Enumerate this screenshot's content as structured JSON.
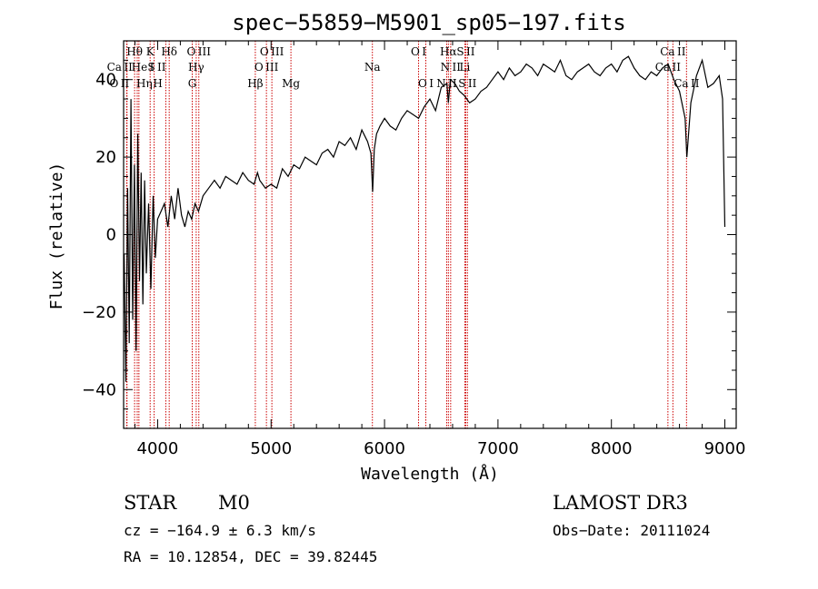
{
  "chart_data": {
    "type": "line",
    "title": "spec−55859−M5901_sp05−197.fits",
    "xlabel": "Wavelength (Å)",
    "ylabel": "Flux (relative)",
    "xlim": [
      3700,
      9100
    ],
    "ylim": [
      -50,
      50
    ],
    "x_ticks": [
      {
        "value": 4000,
        "label": "4000"
      },
      {
        "value": 5000,
        "label": "5000"
      },
      {
        "value": 6000,
        "label": "6000"
      },
      {
        "value": 7000,
        "label": "7000"
      },
      {
        "value": 8000,
        "label": "8000"
      },
      {
        "value": 9000,
        "label": "9000"
      }
    ],
    "y_ticks": [
      {
        "value": -40,
        "label": "−40"
      },
      {
        "value": -20,
        "label": "−20"
      },
      {
        "value": 0,
        "label": "0"
      },
      {
        "value": 20,
        "label": "20"
      },
      {
        "value": 40,
        "label": "40"
      }
    ],
    "series": [
      {
        "color": "#000000",
        "x": [
          3705,
          3720,
          3735,
          3750,
          3765,
          3780,
          3795,
          3810,
          3825,
          3840,
          3855,
          3870,
          3885,
          3900,
          3920,
          3940,
          3960,
          3980,
          4000,
          4030,
          4060,
          4090,
          4120,
          4150,
          4180,
          4210,
          4240,
          4270,
          4300,
          4330,
          4360,
          4400,
          4450,
          4500,
          4550,
          4600,
          4650,
          4700,
          4750,
          4800,
          4850,
          4880,
          4900,
          4950,
          5000,
          5050,
          5100,
          5150,
          5200,
          5250,
          5300,
          5350,
          5400,
          5450,
          5500,
          5550,
          5600,
          5650,
          5700,
          5750,
          5800,
          5850,
          5880,
          5895,
          5910,
          5930,
          5960,
          6000,
          6050,
          6100,
          6150,
          6200,
          6250,
          6300,
          6350,
          6400,
          6450,
          6500,
          6550,
          6563,
          6580,
          6620,
          6660,
          6700,
          6750,
          6800,
          6850,
          6900,
          6950,
          7000,
          7050,
          7100,
          7150,
          7200,
          7250,
          7300,
          7350,
          7400,
          7450,
          7500,
          7550,
          7600,
          7650,
          7700,
          7750,
          7800,
          7850,
          7900,
          7950,
          8000,
          8050,
          8100,
          8150,
          8200,
          8250,
          8300,
          8350,
          8400,
          8450,
          8500,
          8550,
          8600,
          8650,
          8665,
          8700,
          8750,
          8800,
          8850,
          8900,
          8950,
          8980,
          9000
        ],
        "y": [
          -5,
          -38,
          12,
          -28,
          35,
          -22,
          18,
          -30,
          26,
          -12,
          16,
          -18,
          14,
          -10,
          8,
          -14,
          10,
          -6,
          4,
          6,
          8,
          2,
          10,
          4,
          12,
          5,
          2,
          6,
          4,
          8,
          6,
          10,
          12,
          14,
          12,
          15,
          14,
          13,
          16,
          14,
          13,
          16,
          14,
          12,
          13,
          12,
          17,
          15,
          18,
          17,
          20,
          19,
          18,
          21,
          22,
          20,
          24,
          23,
          25,
          22,
          27,
          24,
          21,
          11,
          22,
          26,
          28,
          30,
          28,
          27,
          30,
          32,
          31,
          30,
          33,
          35,
          32,
          38,
          39,
          34,
          40,
          39,
          37,
          36,
          34,
          35,
          37,
          38,
          40,
          42,
          40,
          43,
          41,
          42,
          44,
          43,
          41,
          44,
          43,
          42,
          45,
          41,
          40,
          42,
          43,
          44,
          42,
          41,
          43,
          44,
          42,
          45,
          46,
          43,
          41,
          40,
          42,
          41,
          43,
          44,
          40,
          37,
          30,
          20,
          34,
          41,
          45,
          38,
          39,
          41,
          35,
          2
        ]
      }
    ],
    "lines": [
      {
        "name": "Ca II",
        "x": 3730,
        "row": 1,
        "dx": -8
      },
      {
        "name": "O II",
        "x": 3727,
        "row": 2,
        "dx": -8
      },
      {
        "name": "Hθ",
        "x": 3797,
        "row": 0,
        "dx": 0
      },
      {
        "name": "He I",
        "x": 3820,
        "row": 1,
        "dx": 6
      },
      {
        "name": "Hη",
        "x": 3835,
        "row": 2,
        "dx": 6
      },
      {
        "name": "K",
        "x": 3934,
        "row": 0,
        "dx": 0
      },
      {
        "name": "H",
        "x": 3969,
        "row": 2,
        "dx": 4
      },
      {
        "name": "S II",
        "x": 4072,
        "row": 1,
        "dx": -10
      },
      {
        "name": "Hδ",
        "x": 4102,
        "row": 0,
        "dx": 0
      },
      {
        "name": "O III",
        "x": 4363,
        "row": 0,
        "dx": 0
      },
      {
        "name": "Hγ",
        "x": 4340,
        "row": 1,
        "dx": 0
      },
      {
        "name": "G",
        "x": 4305,
        "row": 2,
        "dx": 0
      },
      {
        "name": "Hβ",
        "x": 4861,
        "row": 2,
        "dx": 0
      },
      {
        "name": "O III",
        "x": 4959,
        "row": 1,
        "dx": 0
      },
      {
        "name": "O III",
        "x": 5007,
        "row": 0,
        "dx": 0
      },
      {
        "name": "Mg",
        "x": 5175,
        "row": 2,
        "dx": 0
      },
      {
        "name": "Na",
        "x": 5893,
        "row": 1,
        "dx": 0
      },
      {
        "name": "O I",
        "x": 6300,
        "row": 0,
        "dx": 0
      },
      {
        "name": "O I",
        "x": 6364,
        "row": 2,
        "dx": 0
      },
      {
        "name": "N II",
        "x": 6548,
        "row": 2,
        "dx": 0
      },
      {
        "name": "Hα",
        "x": 6563,
        "row": 0,
        "dx": 0
      },
      {
        "name": "N II",
        "x": 6583,
        "row": 1,
        "dx": 0
      },
      {
        "name": "Li",
        "x": 6708,
        "row": 1,
        "dx": 0
      },
      {
        "name": "S II",
        "x": 6716,
        "row": 0,
        "dx": 0
      },
      {
        "name": "S II",
        "x": 6731,
        "row": 2,
        "dx": 0
      },
      {
        "name": "Ca II",
        "x": 8498,
        "row": 1,
        "dx": 0
      },
      {
        "name": "Ca II",
        "x": 8542,
        "row": 0,
        "dx": 0
      },
      {
        "name": "Ca II",
        "x": 8662,
        "row": 2,
        "dx": 0
      }
    ],
    "grid": false,
    "line_color": "#cc0000"
  },
  "info": {
    "class": "STAR",
    "subclass": "M0",
    "survey": "LAMOST  DR3",
    "cz": "cz = −164.9 ± 6.3 km/s",
    "obs_date": "Obs−Date: 20111024",
    "radec": "RA =  10.12854, DEC =  39.82445"
  }
}
